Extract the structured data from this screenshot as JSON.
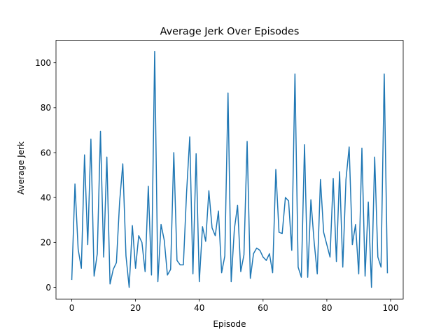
{
  "chart_data": {
    "type": "line",
    "title": "Average Jerk Over Episodes",
    "xlabel": "Episode",
    "ylabel": "Average Jerk",
    "xlim": [
      -4.95,
      103.95
    ],
    "ylim": [
      -5.2,
      110
    ],
    "xticks": [
      0,
      20,
      40,
      60,
      80,
      100
    ],
    "yticks": [
      0,
      20,
      40,
      60,
      80,
      100
    ],
    "grid": false,
    "legend": "none",
    "series": [
      {
        "color": "#1f77b4",
        "x": [
          0,
          1,
          2,
          3,
          4,
          5,
          6,
          7,
          8,
          9,
          10,
          11,
          12,
          13,
          14,
          15,
          16,
          17,
          18,
          19,
          20,
          21,
          22,
          23,
          24,
          25,
          26,
          27,
          28,
          29,
          30,
          31,
          32,
          33,
          34,
          35,
          36,
          37,
          38,
          39,
          40,
          41,
          42,
          43,
          44,
          45,
          46,
          47,
          48,
          49,
          50,
          51,
          52,
          53,
          54,
          55,
          56,
          57,
          58,
          59,
          60,
          61,
          62,
          63,
          64,
          65,
          66,
          67,
          68,
          69,
          70,
          71,
          72,
          73,
          74,
          75,
          76,
          77,
          78,
          79,
          80,
          81,
          82,
          83,
          84,
          85,
          86,
          87,
          88,
          89,
          90,
          91,
          92,
          93,
          94,
          95,
          96,
          97,
          98,
          99
        ],
        "values": [
          3.5,
          46,
          17,
          8.5,
          59,
          19,
          66,
          5,
          15,
          69.5,
          13.5,
          58,
          1.5,
          8,
          11,
          38,
          55,
          14,
          0,
          27.5,
          8.5,
          23,
          20,
          7,
          45,
          5.5,
          105,
          2.5,
          28,
          21,
          5.5,
          8,
          60,
          12,
          10,
          10,
          42,
          67,
          6,
          59.5,
          2.5,
          27,
          20.5,
          43,
          26.5,
          23,
          34,
          6.5,
          14,
          86.5,
          2.5,
          26,
          36.5,
          7,
          14.5,
          65,
          4,
          15,
          17.5,
          16.5,
          13.5,
          12,
          15,
          6.5,
          52.5,
          24.5,
          24,
          40,
          38.5,
          16.5,
          95,
          9,
          4.5,
          63.5,
          4.5,
          39,
          20.5,
          6,
          48,
          24.5,
          19,
          13.5,
          48.5,
          11.5,
          51.5,
          9,
          48,
          62.5,
          19,
          28,
          6,
          62,
          5,
          38,
          0,
          58,
          13.5,
          9,
          95,
          6.5
        ]
      }
    ]
  }
}
